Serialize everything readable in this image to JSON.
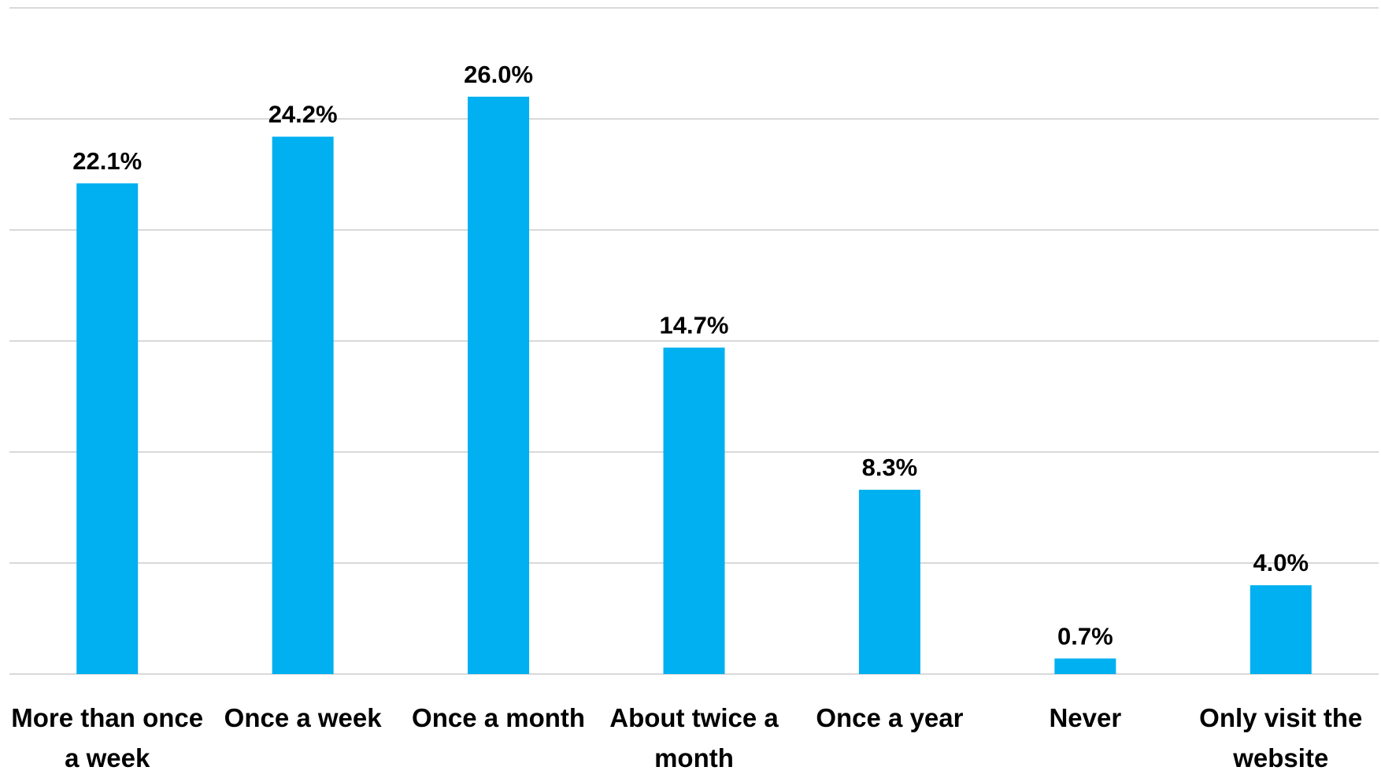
{
  "chart_data": {
    "type": "bar",
    "categories": [
      "More than once a week",
      "Once a week",
      "Once a month",
      "About twice a month",
      "Once a year",
      "Never",
      "Only visit the website"
    ],
    "values": [
      22.1,
      24.2,
      26.0,
      14.7,
      8.3,
      0.7,
      4.0
    ],
    "value_labels": [
      "22.1%",
      "24.2%",
      "26.0%",
      "14.7%",
      "8.3%",
      "0.7%",
      "4.0%"
    ],
    "color": "#00b0f0",
    "ylim": [
      0,
      30
    ],
    "yticks": [
      0,
      5,
      10,
      15,
      20,
      25,
      30
    ],
    "grid": true
  }
}
